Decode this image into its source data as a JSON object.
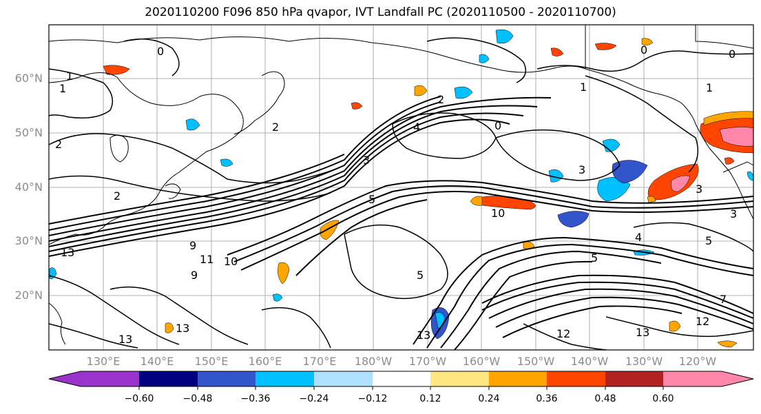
{
  "title": "2020110200 F096 850 hPa qvapor, IVT Landfall PC (2020110500 - 2020110700)",
  "lat_labels": [
    "60°N",
    "50°N",
    "40°N",
    "30°N",
    "20°N"
  ],
  "lon_labels": [
    "130°E",
    "140°E",
    "150°E",
    "160°E",
    "170°E",
    "180°W",
    "170°W",
    "160°W",
    "150°W",
    "140°W",
    "130°W",
    "120°W"
  ],
  "colorbar": {
    "tick_labels": [
      "−0.60",
      "−0.48",
      "−0.36",
      "−0.24",
      "−0.12",
      "0.12",
      "0.24",
      "0.36",
      "0.48",
      "0.60"
    ],
    "colors": [
      "#9933cc",
      "#000080",
      "#3355cc",
      "#00bfff",
      "#b0e0ff",
      "#ffffff",
      "#ffe680",
      "#ffa500",
      "#ff4500",
      "#b22222",
      "#ff88aa"
    ]
  },
  "contour_labels": [
    "1",
    "1",
    "0",
    "2",
    "2",
    "2",
    "3",
    "4",
    "5",
    "10",
    "9",
    "13",
    "13",
    "13",
    "11",
    "10",
    "9",
    "3",
    "0",
    "1",
    "1",
    "0",
    "0",
    "2",
    "3",
    "4",
    "5",
    "5",
    "13",
    "12",
    "12",
    "13",
    "3",
    "5",
    "7"
  ],
  "feature_colors": {
    "contour": "#000000",
    "grid": "#9a9a9a",
    "coast": "#000000"
  }
}
